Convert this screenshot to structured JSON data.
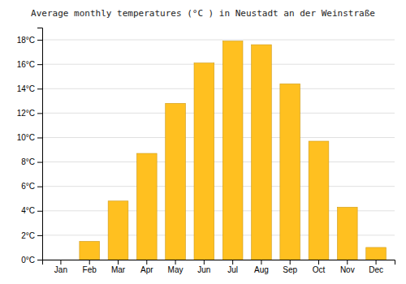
{
  "chart_data": {
    "type": "bar",
    "title": "Average monthly temperatures (°C ) in Neustadt an der Weinstraße",
    "categories": [
      "Jan",
      "Feb",
      "Mar",
      "Apr",
      "May",
      "Jun",
      "Jul",
      "Aug",
      "Sep",
      "Oct",
      "Nov",
      "Dec"
    ],
    "values": [
      0.0,
      1.5,
      4.8,
      8.7,
      12.8,
      16.1,
      17.9,
      17.6,
      14.4,
      9.7,
      4.3,
      1.0
    ],
    "color": "#FFC020",
    "ylim": [
      0,
      19
    ],
    "yticks": [
      {
        "value": 0,
        "label": "0°C"
      },
      {
        "value": 2,
        "label": "2°C"
      },
      {
        "value": 4,
        "label": "4°C"
      },
      {
        "value": 6,
        "label": "6°C"
      },
      {
        "value": 8,
        "label": "8°C"
      },
      {
        "value": 10,
        "label": "10°C"
      },
      {
        "value": 12,
        "label": "12°C"
      },
      {
        "value": 14,
        "label": "14°C"
      },
      {
        "value": 16,
        "label": "16°C"
      },
      {
        "value": 18,
        "label": "18°C"
      }
    ],
    "grid": true
  }
}
